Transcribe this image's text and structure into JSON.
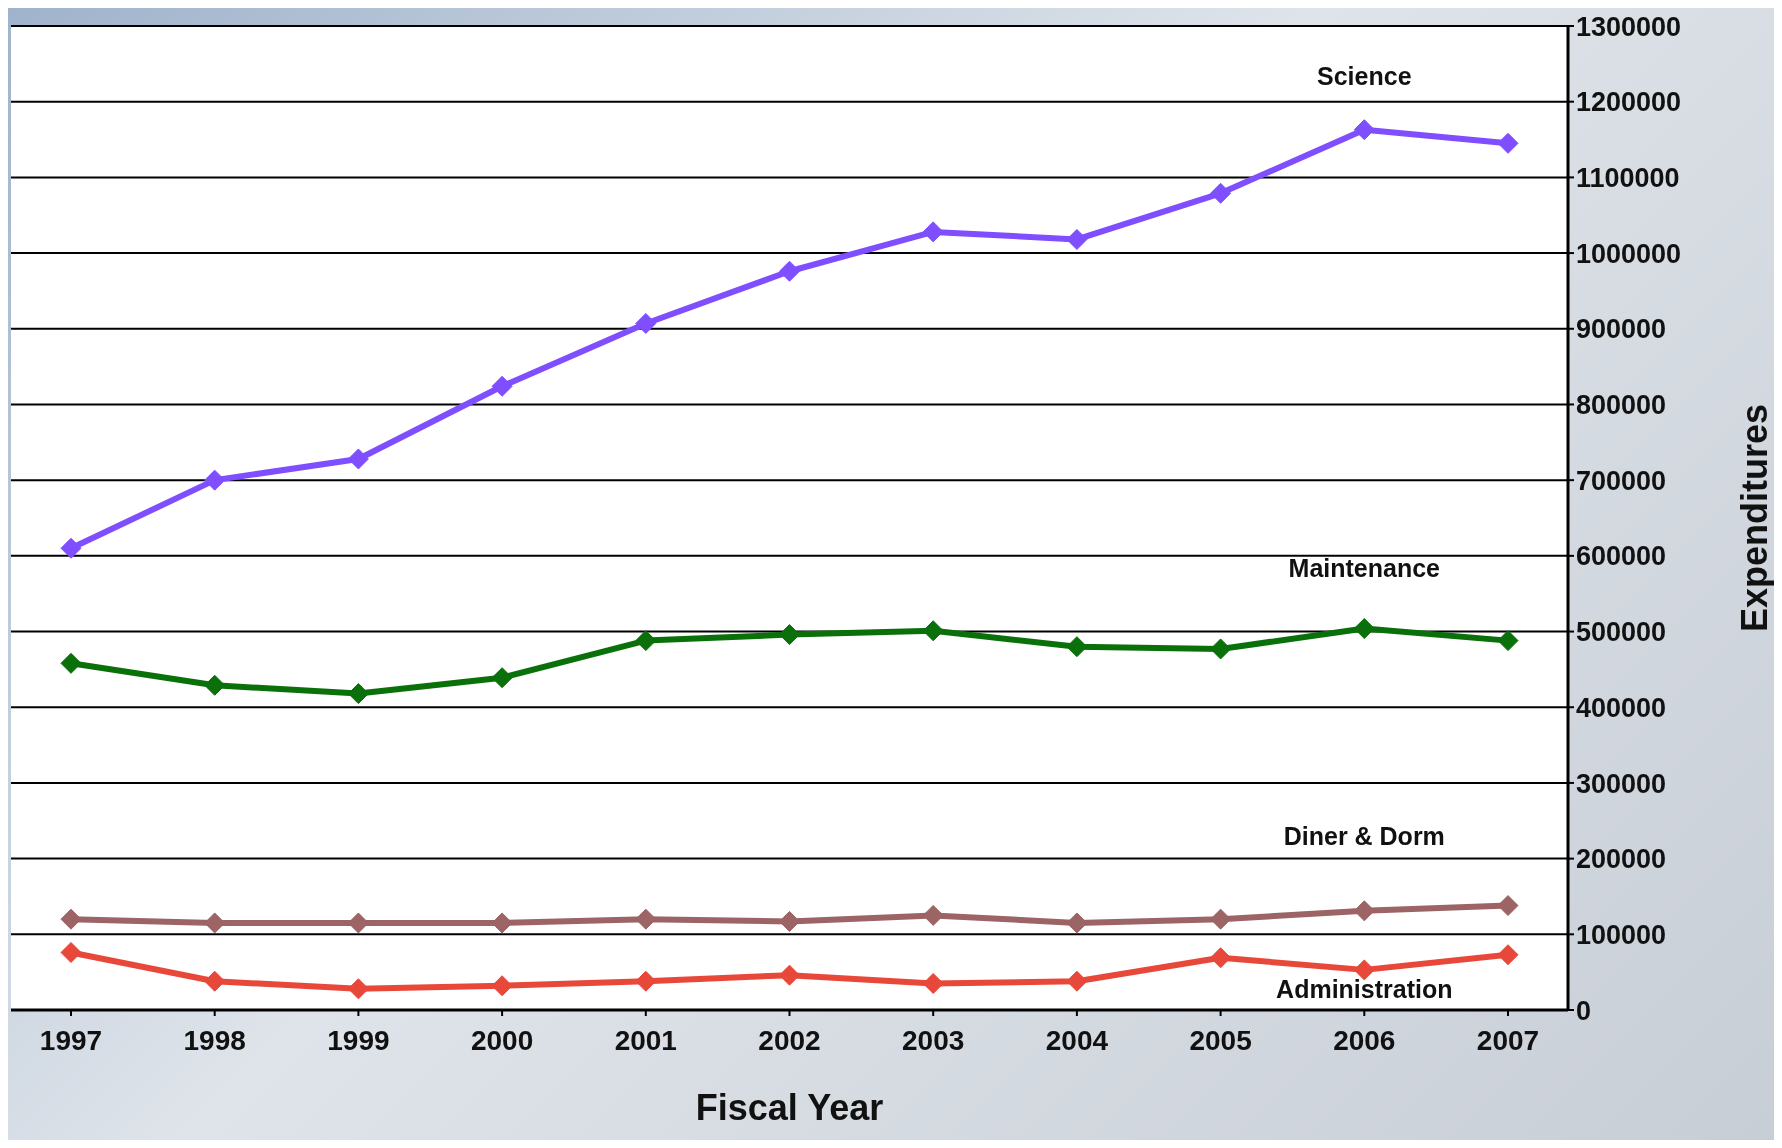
{
  "chart_data": {
    "type": "line",
    "xlabel": "Fiscal Year",
    "ylabel": "Expenditures",
    "categories": [
      "1997",
      "1998",
      "1999",
      "2000",
      "2001",
      "2002",
      "2003",
      "2004",
      "2005",
      "2006",
      "2007"
    ],
    "series": [
      {
        "name": "Science",
        "color": "#7f4fff",
        "values": [
          610000,
          700000,
          728000,
          824000,
          907000,
          976000,
          1028000,
          1018000,
          1079000,
          1163000,
          1145000
        ]
      },
      {
        "name": "Maintenance",
        "color": "#0a700a",
        "values": [
          458000,
          429000,
          418000,
          439000,
          488000,
          496000,
          501000,
          480000,
          477000,
          504000,
          488000
        ]
      },
      {
        "name": "Diner & Dorm",
        "color": "#9c6464",
        "values": [
          120000,
          115000,
          115000,
          115000,
          120000,
          117000,
          125000,
          115000,
          120000,
          131000,
          138000
        ]
      },
      {
        "name": "Administration",
        "color": "#e8483a",
        "values": [
          76000,
          38000,
          28000,
          32000,
          38000,
          46000,
          35000,
          38000,
          69000,
          53000,
          73000
        ]
      }
    ],
    "ylim": [
      0,
      1300000
    ],
    "yticks": [
      0,
      100000,
      200000,
      300000,
      400000,
      500000,
      600000,
      700000,
      800000,
      900000,
      1000000,
      1100000,
      1200000,
      1300000
    ],
    "grid": "y",
    "marker": "diamond",
    "line_style": "solid"
  }
}
